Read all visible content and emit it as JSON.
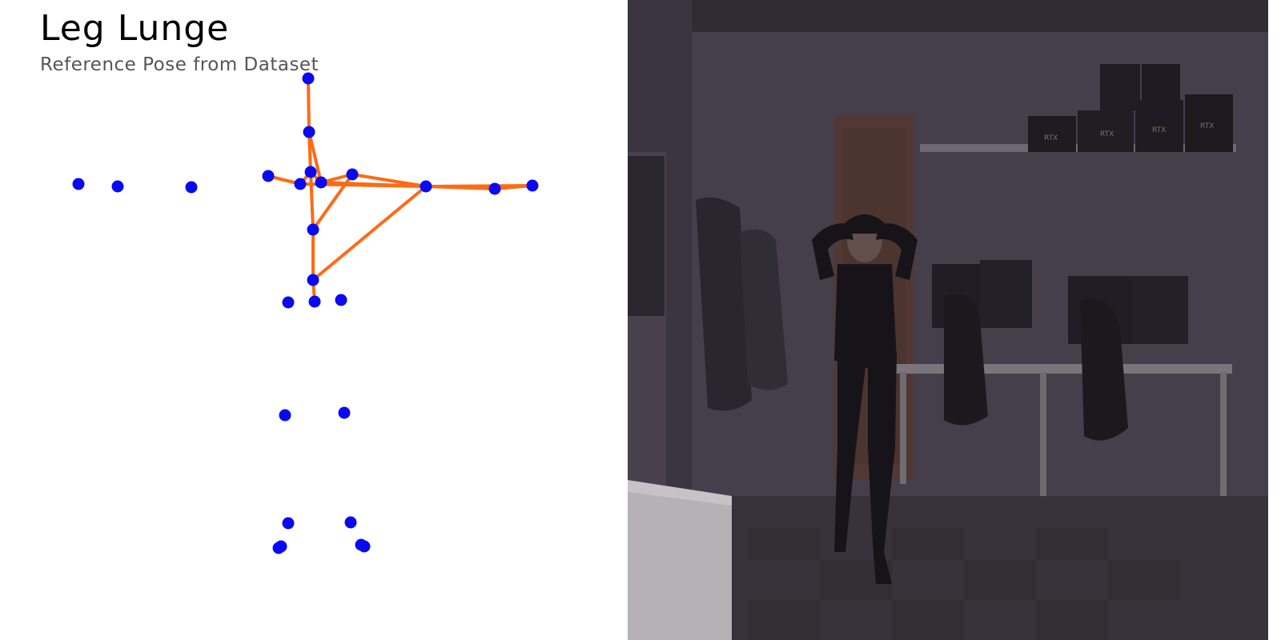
{
  "left_panel": {
    "title": "Leg Lunge",
    "subtitle": "Reference Pose from Dataset",
    "colors": {
      "background": "#ffffff",
      "keypoint": "#0a0af0",
      "bone": "#ff6a14",
      "title": "#000000",
      "subtitle": "#555555"
    }
  },
  "right_panel": {
    "image_description": "camera-feed",
    "monitor_labels": [
      "RTX",
      "RTX",
      "RTX",
      "RTX"
    ]
  }
}
